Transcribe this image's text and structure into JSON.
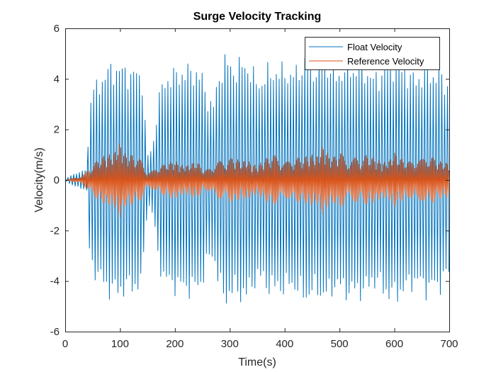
{
  "chart_data": {
    "type": "line",
    "title": "Surge Velocity Tracking",
    "xlabel": "Time(s)",
    "ylabel": "Velocity(m/s)",
    "xlim": [
      0,
      700
    ],
    "ylim": [
      -6,
      6
    ],
    "xticks": [
      0,
      100,
      200,
      300,
      400,
      500,
      600,
      700
    ],
    "yticks": [
      -6,
      -4,
      -2,
      0,
      2,
      4,
      6
    ],
    "grid": false,
    "legend_position": "top-right",
    "series": [
      {
        "name": "Float Velocity",
        "color": "#0072BD",
        "envelope": {
          "x": [
            0,
            10,
            20,
            30,
            40,
            45,
            50,
            60,
            70,
            80,
            90,
            100,
            110,
            120,
            130,
            140,
            150,
            160,
            170,
            180,
            190,
            200,
            210,
            220,
            230,
            240,
            250,
            260,
            270,
            280,
            290,
            300,
            310,
            320,
            330,
            340,
            350,
            360,
            370,
            380,
            390,
            400,
            410,
            420,
            430,
            440,
            450,
            460,
            470,
            480,
            490,
            500,
            510,
            520,
            530,
            540,
            550,
            560,
            570,
            580,
            590,
            600,
            610,
            620,
            630,
            640,
            650,
            660,
            670,
            680,
            690,
            700
          ],
          "amplitude": [
            0.0,
            0.2,
            0.3,
            0.35,
            0.5,
            3.6,
            3.8,
            4.2,
            4.5,
            4.8,
            4.9,
            4.8,
            4.8,
            4.6,
            4.7,
            4.5,
            1.0,
            1.5,
            3.5,
            4.3,
            4.5,
            4.6,
            4.7,
            4.7,
            4.8,
            4.7,
            4.4,
            3.5,
            3.2,
            4.5,
            5.2,
            5.0,
            4.8,
            5.0,
            5.1,
            4.6,
            4.3,
            4.3,
            4.7,
            4.8,
            4.6,
            4.9,
            4.5,
            4.7,
            5.0,
            5.1,
            4.9,
            4.8,
            5.1,
            5.0,
            4.6,
            4.7,
            4.8,
            5.0,
            4.8,
            4.9,
            4.8,
            4.4,
            4.5,
            4.8,
            5.0,
            5.1,
            4.9,
            4.8,
            4.5,
            4.4,
            4.6,
            4.8,
            4.6,
            4.7,
            4.3,
            4.1
          ]
        }
      },
      {
        "name": "Reference Velocity",
        "color": "#D95319",
        "envelope": {
          "x": [
            0,
            10,
            20,
            30,
            40,
            50,
            60,
            70,
            80,
            90,
            100,
            110,
            120,
            130,
            140,
            150,
            160,
            170,
            180,
            190,
            200,
            210,
            220,
            230,
            240,
            250,
            260,
            270,
            280,
            290,
            300,
            310,
            320,
            330,
            340,
            350,
            360,
            370,
            380,
            390,
            400,
            410,
            420,
            430,
            440,
            450,
            460,
            470,
            480,
            490,
            500,
            510,
            520,
            530,
            540,
            550,
            560,
            570,
            580,
            590,
            600,
            610,
            620,
            630,
            640,
            650,
            660,
            670,
            680,
            690,
            700
          ],
          "amplitude": [
            0.0,
            0.05,
            0.1,
            0.15,
            0.35,
            0.6,
            0.8,
            0.95,
            1.0,
            1.1,
            1.5,
            1.0,
            1.0,
            0.9,
            0.75,
            0.3,
            0.35,
            0.55,
            0.6,
            0.7,
            0.75,
            0.6,
            0.55,
            0.65,
            0.75,
            0.45,
            0.4,
            0.6,
            0.75,
            0.7,
            0.85,
            0.9,
            0.7,
            0.8,
            0.65,
            0.55,
            0.75,
            0.9,
            1.0,
            0.85,
            0.7,
            0.75,
            0.9,
            0.85,
            0.95,
            1.0,
            0.95,
            1.4,
            1.0,
            0.9,
            1.2,
            0.85,
            0.75,
            0.9,
            0.85,
            1.0,
            0.9,
            0.8,
            0.7,
            0.75,
            1.1,
            0.85,
            0.8,
            0.7,
            0.9,
            0.8,
            0.95,
            0.9,
            0.75,
            0.7,
            0.65
          ]
        }
      }
    ]
  }
}
